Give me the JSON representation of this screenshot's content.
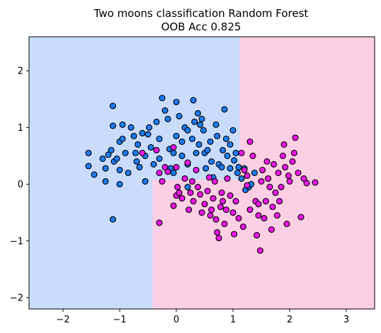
{
  "chart_data": {
    "type": "scatter",
    "title": "Two moons classification Random Forest",
    "subtitle": "OOB Acc 0.825",
    "xlabel": "",
    "ylabel": "",
    "xlim": [
      -2.6,
      3.5
    ],
    "ylim": [
      -2.2,
      2.6
    ],
    "xticks": [
      -2,
      -1,
      0,
      1,
      2,
      3
    ],
    "yticks": [
      -2,
      -1,
      0,
      1,
      2
    ],
    "grid": false,
    "decision_regions": [
      {
        "class": 0,
        "color": "#cadcfb",
        "x_range": [
          -2.6,
          -0.42
        ],
        "y_range": [
          -2.2,
          2.6
        ]
      },
      {
        "class": 0,
        "color": "#cadcfb",
        "x_range": [
          -0.42,
          1.12
        ],
        "y_range": [
          0.08,
          2.6
        ]
      },
      {
        "class": 1,
        "color": "#fdcfe4",
        "x_range": [
          -0.42,
          1.12
        ],
        "y_range": [
          -2.2,
          0.08
        ]
      },
      {
        "class": 1,
        "color": "#fdcfe4",
        "x_range": [
          1.12,
          3.5
        ],
        "y_range": [
          -2.2,
          2.6
        ]
      }
    ],
    "series": [
      {
        "class": 0,
        "color": "#1e7bf2",
        "points": [
          [
            -1.55,
            0.55
          ],
          [
            -1.55,
            0.32
          ],
          [
            -1.45,
            0.17
          ],
          [
            -1.3,
            0.45
          ],
          [
            -1.25,
            0.28
          ],
          [
            -1.25,
            0.05
          ],
          [
            -1.2,
            0.52
          ],
          [
            -1.15,
            0.6
          ],
          [
            -1.12,
            1.38
          ],
          [
            -1.12,
            1.03
          ],
          [
            -1.1,
            0.4
          ],
          [
            -1.05,
            0.45
          ],
          [
            -1.0,
            0.75
          ],
          [
            -1.0,
            0.25
          ],
          [
            -1.0,
            0.0
          ],
          [
            -0.95,
            1.05
          ],
          [
            -0.95,
            0.8
          ],
          [
            -0.9,
            0.55
          ],
          [
            -0.85,
            0.2
          ],
          [
            -0.8,
            1.0
          ],
          [
            -0.75,
            0.85
          ],
          [
            -0.72,
            0.55
          ],
          [
            -0.7,
            0.4
          ],
          [
            -0.68,
            0.7
          ],
          [
            -0.65,
            0.3
          ],
          [
            -0.6,
            0.9
          ],
          [
            -0.55,
            0.5
          ],
          [
            -0.55,
            0.05
          ],
          [
            -0.5,
            0.88
          ],
          [
            -0.48,
            1.0
          ],
          [
            -0.45,
            0.65
          ],
          [
            -0.4,
            0.35
          ],
          [
            -0.35,
            1.1
          ],
          [
            -0.3,
            0.8
          ],
          [
            -0.3,
            0.45
          ],
          [
            -0.25,
            1.52
          ],
          [
            -0.2,
            1.3
          ],
          [
            -0.15,
            1.15
          ],
          [
            -0.12,
            0.62
          ],
          [
            -0.1,
            0.28
          ],
          [
            -0.05,
            0.55
          ],
          [
            -0.05,
            0.2
          ],
          [
            0.0,
            1.45
          ],
          [
            0.0,
            0.85
          ],
          [
            0.05,
            1.2
          ],
          [
            0.1,
            0.75
          ],
          [
            0.1,
            0.5
          ],
          [
            0.15,
            1.0
          ],
          [
            0.2,
            0.95
          ],
          [
            0.2,
            0.35
          ],
          [
            0.28,
            0.8
          ],
          [
            0.3,
            1.48
          ],
          [
            0.32,
            1.1
          ],
          [
            0.35,
            0.55
          ],
          [
            0.38,
            1.25
          ],
          [
            0.4,
            0.7
          ],
          [
            0.42,
            1.05
          ],
          [
            0.45,
            1.15
          ],
          [
            0.48,
            0.95
          ],
          [
            0.5,
            0.55
          ],
          [
            0.52,
            0.28
          ],
          [
            0.55,
            0.6
          ],
          [
            0.6,
            0.75
          ],
          [
            0.62,
            0.4
          ],
          [
            0.65,
            0.12
          ],
          [
            0.7,
            1.05
          ],
          [
            0.72,
            0.85
          ],
          [
            0.75,
            0.35
          ],
          [
            0.8,
            0.3
          ],
          [
            0.82,
            0.6
          ],
          [
            0.85,
            1.32
          ],
          [
            0.88,
            0.8
          ],
          [
            0.9,
            0.5
          ],
          [
            0.95,
            0.7
          ],
          [
            0.95,
            0.28
          ],
          [
            1.0,
            0.95
          ],
          [
            1.02,
            0.42
          ],
          [
            1.05,
            0.55
          ],
          [
            1.08,
            0.2
          ],
          [
            1.1,
            0.3
          ],
          [
            1.15,
            0.1
          ],
          [
            1.2,
            0.28
          ],
          [
            1.22,
            -0.1
          ],
          [
            1.28,
            -0.05
          ],
          [
            1.32,
            0.0
          ],
          [
            1.38,
            0.2
          ],
          [
            -1.12,
            -0.62
          ],
          [
            0.2,
            -0.05
          ]
        ]
      },
      {
        "class": 1,
        "color": "#ee17e8",
        "points": [
          [
            -0.35,
            0.6
          ],
          [
            -0.3,
            0.2
          ],
          [
            -0.25,
            0.05
          ],
          [
            -0.2,
            0.3
          ],
          [
            -0.15,
            0.22
          ],
          [
            -0.05,
            0.65
          ],
          [
            0.0,
            0.3
          ],
          [
            0.0,
            -0.2
          ],
          [
            0.02,
            -0.05
          ],
          [
            0.05,
            -0.15
          ],
          [
            -0.05,
            -0.38
          ],
          [
            0.1,
            -0.25
          ],
          [
            0.15,
            0.1
          ],
          [
            0.2,
            0.38
          ],
          [
            0.22,
            -0.45
          ],
          [
            0.25,
            -0.15
          ],
          [
            0.28,
            0.05
          ],
          [
            0.3,
            -0.3
          ],
          [
            0.35,
            0.25
          ],
          [
            0.38,
            -0.05
          ],
          [
            0.42,
            -0.18
          ],
          [
            0.45,
            -0.5
          ],
          [
            0.5,
            -0.35
          ],
          [
            0.55,
            -0.12
          ],
          [
            0.58,
            0.12
          ],
          [
            0.62,
            -0.45
          ],
          [
            0.65,
            -0.25
          ],
          [
            0.68,
            0.05
          ],
          [
            0.7,
            -0.62
          ],
          [
            0.72,
            -0.85
          ],
          [
            0.75,
            -0.95
          ],
          [
            0.78,
            -0.4
          ],
          [
            0.8,
            -0.15
          ],
          [
            0.82,
            -0.3
          ],
          [
            0.85,
            -0.7
          ],
          [
            0.88,
            -0.45
          ],
          [
            0.9,
            0.1
          ],
          [
            0.95,
            -0.2
          ],
          [
            1.0,
            -0.5
          ],
          [
            1.02,
            -0.88
          ],
          [
            1.05,
            -0.3
          ],
          [
            1.1,
            -0.6
          ],
          [
            1.15,
            0.55
          ],
          [
            1.18,
            -0.75
          ],
          [
            1.2,
            0.25
          ],
          [
            1.25,
            0.15
          ],
          [
            1.3,
            -0.45
          ],
          [
            1.3,
            0.75
          ],
          [
            1.35,
            0.5
          ],
          [
            1.4,
            -0.3
          ],
          [
            1.42,
            -0.9
          ],
          [
            1.45,
            -0.55
          ],
          [
            1.48,
            -1.17
          ],
          [
            1.5,
            0.05
          ],
          [
            1.52,
            0.25
          ],
          [
            1.55,
            -0.6
          ],
          [
            1.58,
            -0.3
          ],
          [
            1.6,
            0.4
          ],
          [
            1.62,
            0.1
          ],
          [
            1.65,
            -0.05
          ],
          [
            1.68,
            -0.8
          ],
          [
            1.7,
            -0.4
          ],
          [
            1.72,
            0.35
          ],
          [
            1.75,
            -0.15
          ],
          [
            1.78,
            -0.55
          ],
          [
            1.8,
            0.2
          ],
          [
            1.82,
            -0.3
          ],
          [
            1.85,
            -0.05
          ],
          [
            1.88,
            0.5
          ],
          [
            1.9,
            0.7
          ],
          [
            1.92,
            0.3
          ],
          [
            1.95,
            -0.7
          ],
          [
            1.98,
            0.15
          ],
          [
            2.0,
            0.05
          ],
          [
            2.05,
            0.4
          ],
          [
            2.08,
            0.55
          ],
          [
            2.1,
            0.82
          ],
          [
            2.15,
            0.2
          ],
          [
            2.2,
            -0.58
          ],
          [
            2.25,
            0.1
          ],
          [
            2.3,
            0.02
          ],
          [
            2.45,
            0.03
          ],
          [
            -0.6,
            0.55
          ],
          [
            -0.3,
            -0.68
          ],
          [
            0.6,
            -0.55
          ],
          [
            1.25,
            -0.02
          ],
          [
            1.45,
            -0.35
          ]
        ]
      }
    ]
  }
}
